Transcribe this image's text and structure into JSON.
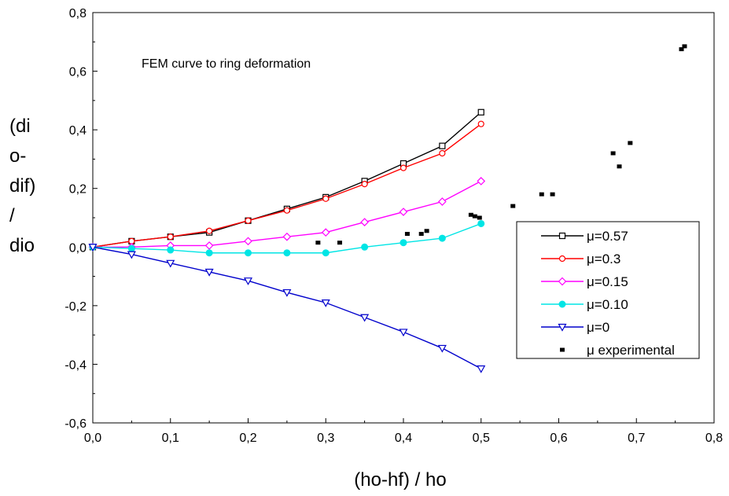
{
  "chart_data": {
    "type": "line",
    "annotation": "FEM curve to ring deformation",
    "xlabel": "(ho-hf) / ho",
    "ylabel_lines": [
      "(di",
      "o-",
      "dif)",
      "/",
      "dio"
    ],
    "xlim": [
      0,
      0.8
    ],
    "ylim": [
      -0.6,
      0.8
    ],
    "x_ticks": [
      "0,0",
      "0,1",
      "0,2",
      "0,3",
      "0,4",
      "0,5",
      "0,6",
      "0,7",
      "0,8"
    ],
    "y_ticks": [
      "-0,6",
      "-0,4",
      "-0,2",
      "0,0",
      "0,2",
      "0,4",
      "0,6",
      "0,8"
    ],
    "x_tick_values": [
      0,
      0.1,
      0.2,
      0.3,
      0.4,
      0.5,
      0.6,
      0.7,
      0.8
    ],
    "y_tick_values": [
      -0.6,
      -0.4,
      -0.2,
      0,
      0.2,
      0.4,
      0.6,
      0.8
    ],
    "legend_position": "right",
    "x": [
      0,
      0.05,
      0.1,
      0.15,
      0.2,
      0.25,
      0.3,
      0.35,
      0.4,
      0.45,
      0.5
    ],
    "series": [
      {
        "name": "μ=0.57",
        "color": "#000000",
        "marker": "open-square",
        "values": [
          0,
          0.02,
          0.035,
          0.05,
          0.09,
          0.13,
          0.17,
          0.225,
          0.285,
          0.345,
          0.46
        ]
      },
      {
        "name": "μ=0.3",
        "color": "#ff0000",
        "marker": "open-circle",
        "values": [
          0,
          0.02,
          0.035,
          0.055,
          0.09,
          0.125,
          0.165,
          0.215,
          0.27,
          0.32,
          0.42
        ]
      },
      {
        "name": "μ=0.15",
        "color": "#ff00ff",
        "marker": "open-diamond",
        "values": [
          0,
          0.0,
          0.005,
          0.005,
          0.02,
          0.035,
          0.05,
          0.085,
          0.12,
          0.155,
          0.225
        ]
      },
      {
        "name": "μ=0.10",
        "color": "#00e5e5",
        "marker": "filled-circle",
        "values": [
          0,
          -0.005,
          -0.01,
          -0.02,
          -0.02,
          -0.02,
          -0.02,
          0.0,
          0.015,
          0.03,
          0.08
        ]
      },
      {
        "name": "μ=0",
        "color": "#0000cc",
        "marker": "open-triangle-down",
        "values": [
          0,
          -0.025,
          -0.055,
          -0.085,
          -0.115,
          -0.155,
          -0.19,
          -0.24,
          -0.29,
          -0.345,
          -0.415
        ]
      }
    ],
    "experimental": {
      "name": "μ experimental",
      "color": "#000000",
      "points": [
        [
          0.29,
          0.015
        ],
        [
          0.318,
          0.015
        ],
        [
          0.405,
          0.045
        ],
        [
          0.423,
          0.045
        ],
        [
          0.43,
          0.055
        ],
        [
          0.487,
          0.11
        ],
        [
          0.492,
          0.105
        ],
        [
          0.498,
          0.1
        ],
        [
          0.541,
          0.14
        ],
        [
          0.578,
          0.18
        ],
        [
          0.592,
          0.18
        ],
        [
          0.67,
          0.32
        ],
        [
          0.678,
          0.275
        ],
        [
          0.692,
          0.355
        ],
        [
          0.758,
          0.675
        ],
        [
          0.762,
          0.685
        ]
      ]
    }
  }
}
